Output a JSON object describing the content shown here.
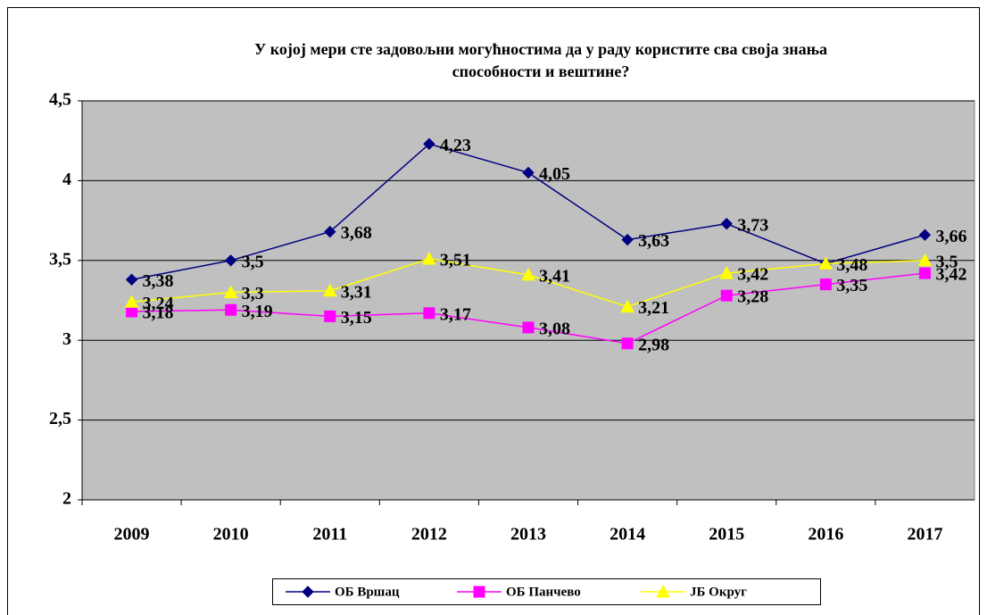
{
  "chart_data": {
    "type": "line",
    "title": [
      "У којој мери сте задовољни могућностима да у раду користите сва своја знања",
      "способности и вештине?"
    ],
    "categories": [
      "2009",
      "2010",
      "2011",
      "2012",
      "2013",
      "2014",
      "2015",
      "2016",
      "2017"
    ],
    "series": [
      {
        "name": "ОБ Вршац",
        "color": "#000080",
        "marker": "diamond",
        "values": [
          3.38,
          3.5,
          3.68,
          4.23,
          4.05,
          3.63,
          3.73,
          3.48,
          3.66
        ],
        "value_labels": [
          "3,38",
          "3,5",
          "3,68",
          "4,23",
          "4,05",
          "3,63",
          "3,73",
          null,
          "3,66"
        ]
      },
      {
        "name": "ОБ Панчево",
        "color": "#ff00ff",
        "marker": "square",
        "values": [
          3.18,
          3.19,
          3.15,
          3.17,
          3.08,
          2.98,
          3.28,
          3.35,
          3.42
        ],
        "value_labels": [
          "3,18",
          "3,19",
          "3,15",
          "3,17",
          "3,08",
          "2,98",
          "3,28",
          "3,35",
          "3,42"
        ]
      },
      {
        "name": "ЈБ Округ",
        "color": "#ffff00",
        "marker": "triangle",
        "values": [
          3.24,
          3.3,
          3.31,
          3.51,
          3.41,
          3.21,
          3.42,
          3.48,
          3.5
        ],
        "value_labels": [
          "3,24",
          "3,3",
          "3,31",
          "3,51",
          "3,41",
          "3,21",
          "3,42",
          "3,48",
          "3,5"
        ]
      }
    ],
    "ylim": [
      2,
      4.5
    ],
    "yticks": [
      2,
      {
        "value": 2.5,
        "label": "2,5"
      },
      3,
      {
        "value": 3.5,
        "label": "3,5"
      },
      4,
      {
        "value": 4.5,
        "label": "4,5"
      }
    ],
    "grid": true,
    "legend": "bottom"
  }
}
